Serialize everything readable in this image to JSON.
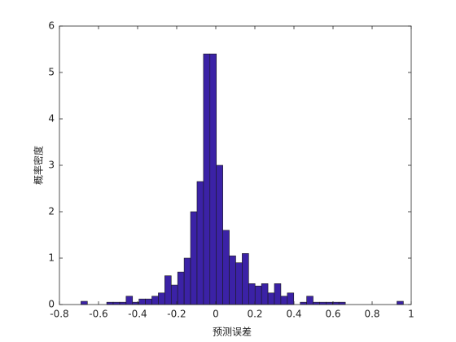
{
  "chart_data": {
    "type": "histogram",
    "x_label": "预测误差",
    "y_label": "概率密度",
    "bins": [
      -0.69,
      -0.657,
      -0.624,
      -0.591,
      -0.558,
      -0.525,
      -0.492,
      -0.459,
      -0.426,
      -0.393,
      -0.36,
      -0.327,
      -0.294,
      -0.261,
      -0.228,
      -0.195,
      -0.162,
      -0.129,
      -0.096,
      -0.063,
      -0.03,
      0.003,
      0.036,
      0.069,
      0.102,
      0.135,
      0.168,
      0.201,
      0.234,
      0.267,
      0.3,
      0.333,
      0.366,
      0.399,
      0.432,
      0.465,
      0.498,
      0.531,
      0.564,
      0.597,
      0.63,
      0.663,
      0.696,
      0.729,
      0.762,
      0.795,
      0.828,
      0.861,
      0.894,
      0.927,
      0.96,
      0.993
    ],
    "values": [
      0.07,
      0,
      0,
      0,
      0.05,
      0.05,
      0.05,
      0.18,
      0.05,
      0.12,
      0.12,
      0.18,
      0.25,
      0.62,
      0.42,
      0.7,
      1.0,
      2.0,
      2.65,
      5.4,
      5.4,
      3.0,
      1.6,
      1.05,
      0.9,
      1.1,
      0.45,
      0.4,
      0.45,
      0.25,
      0.45,
      0.18,
      0.25,
      0,
      0.05,
      0.18,
      0.05,
      0.05,
      0.05,
      0.05,
      0.05,
      0,
      0,
      0,
      0,
      0,
      0,
      0,
      0,
      0.07,
      0
    ],
    "color": "#3b22a6",
    "xlim": [
      -0.8,
      1
    ],
    "xticks": [
      -0.8,
      -0.6,
      -0.4,
      -0.2,
      0,
      0.2,
      0.4,
      0.6,
      0.8,
      1
    ],
    "ylim": [
      0,
      6
    ],
    "yticks": [
      0,
      1,
      2,
      3,
      4,
      5,
      6
    ],
    "grid": false
  }
}
